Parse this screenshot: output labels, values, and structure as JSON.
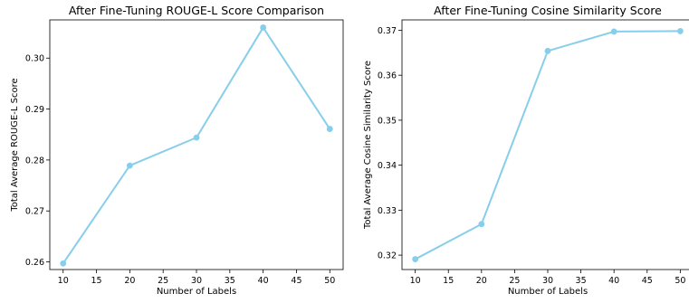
{
  "chart_data": [
    {
      "type": "line",
      "title": "After Fine-Tuning ROUGE-L Score Comparison",
      "xlabel": "Number of Labels",
      "ylabel": "Total Average ROUGE-L Score",
      "xlim": [
        8,
        52
      ],
      "ylim": [
        0.2585,
        0.3075
      ],
      "xticks": [
        10,
        15,
        20,
        25,
        30,
        35,
        40,
        45,
        50
      ],
      "yticks": [
        0.26,
        0.27,
        0.28,
        0.29,
        0.3
      ],
      "ytick_decimals": 2,
      "grid": false,
      "legend": "none",
      "color": "#87CEEB",
      "x": [
        10,
        20,
        30,
        40,
        50
      ],
      "y": [
        0.2597,
        0.2789,
        0.2844,
        0.306,
        0.2861
      ]
    },
    {
      "type": "line",
      "title": "After Fine-Tuning Cosine Similarity Score",
      "xlabel": "Number of Labels",
      "ylabel": "Total Average Cosine Similarity Score",
      "xlim": [
        8,
        52
      ],
      "ylim": [
        0.3168,
        0.3723
      ],
      "xticks": [
        10,
        15,
        20,
        25,
        30,
        35,
        40,
        45,
        50
      ],
      "yticks": [
        0.32,
        0.33,
        0.34,
        0.35,
        0.36,
        0.37
      ],
      "ytick_decimals": 2,
      "grid": false,
      "legend": "none",
      "color": "#87CEEB",
      "x": [
        10,
        20,
        30,
        40,
        50
      ],
      "y": [
        0.3191,
        0.3269,
        0.3654,
        0.3697,
        0.3698
      ]
    }
  ]
}
